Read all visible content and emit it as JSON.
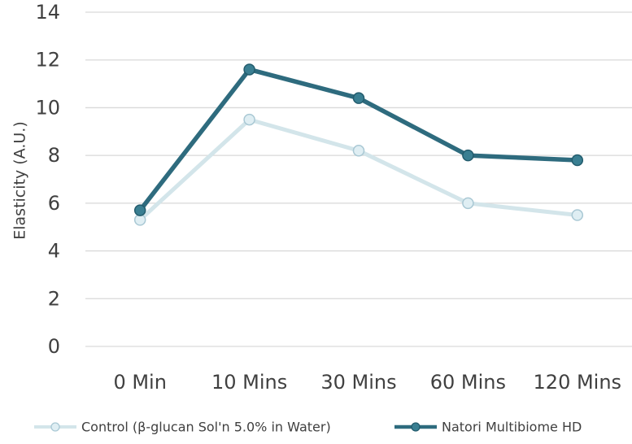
{
  "chart_data": {
    "type": "line",
    "categories": [
      "0 Min",
      "10 Mins",
      "30 Mins",
      "60 Mins",
      "120 Mins"
    ],
    "series": [
      {
        "name": "Control (β-glucan Sol'n 5.0% in Water)",
        "values": [
          5.3,
          9.5,
          8.2,
          6.0,
          5.5
        ],
        "color": "#d3e5ea",
        "marker_fill": "#dfeef3",
        "marker_stroke": "#a9c8d4"
      },
      {
        "name": "Natori Multibiome HD",
        "values": [
          5.7,
          11.6,
          10.4,
          8.0,
          7.8
        ],
        "color": "#2e6b7e",
        "marker_fill": "#3a7f92",
        "marker_stroke": "#235c6d"
      }
    ],
    "title": "",
    "xlabel": "",
    "ylabel": "Elasticity (A.U.)",
    "ylim": [
      0,
      14
    ],
    "yticks": [
      "0",
      "2",
      "4",
      "6",
      "8",
      "10",
      "12",
      "14"
    ],
    "grid": true,
    "legend_position": "bottom",
    "gridline_color": "#d9d9d9"
  }
}
